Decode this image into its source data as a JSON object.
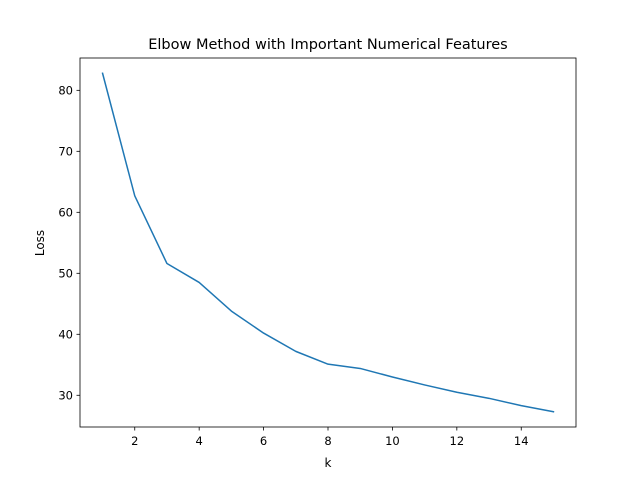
{
  "chart_data": {
    "type": "line",
    "title": "Elbow Method with Important Numerical Features",
    "xlabel": "k",
    "ylabel": "Loss",
    "xlim": [
      0.3,
      15.7
    ],
    "ylim": [
      24.8,
      85.3
    ],
    "xticks": [
      2,
      4,
      6,
      8,
      10,
      12,
      14
    ],
    "yticks": [
      30,
      40,
      50,
      60,
      70,
      80
    ],
    "grid": false,
    "series": [
      {
        "color": "#1f77b4",
        "x": [
          1,
          2,
          3,
          4,
          5,
          6,
          7,
          8,
          9,
          10,
          11,
          12,
          13,
          14,
          15
        ],
        "y": [
          82.8,
          62.7,
          51.6,
          48.5,
          43.8,
          40.2,
          37.2,
          35.1,
          34.4,
          33.0,
          31.7,
          30.5,
          29.5,
          28.3,
          27.3
        ]
      }
    ]
  }
}
